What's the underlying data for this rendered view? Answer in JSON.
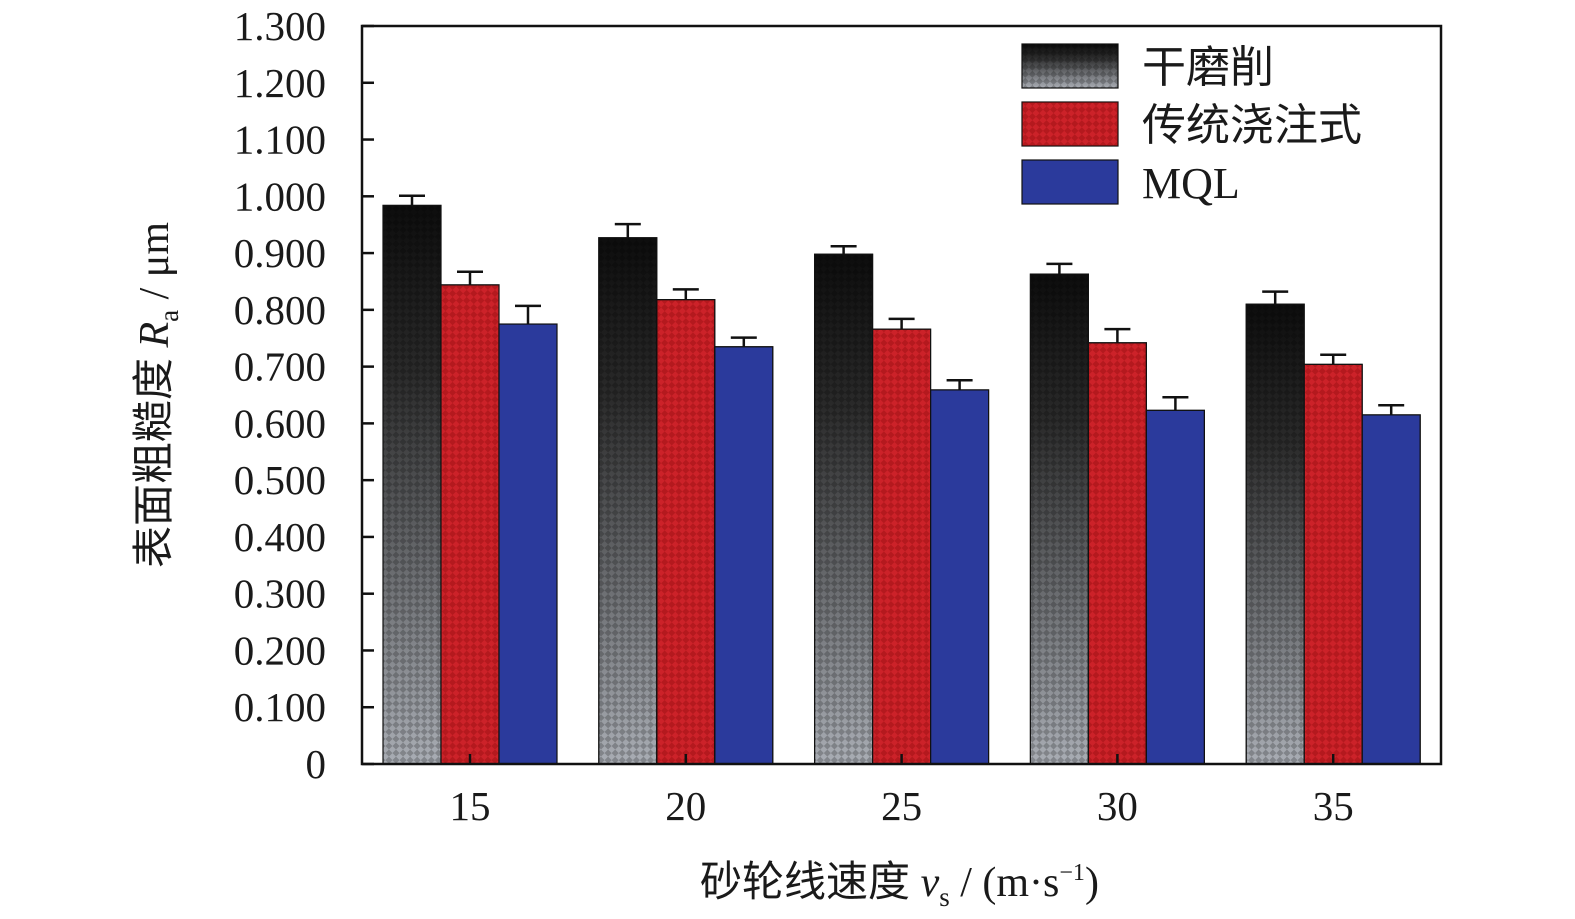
{
  "chart_data": {
    "type": "bar",
    "categories": [
      "15",
      "20",
      "25",
      "30",
      "35"
    ],
    "series": [
      {
        "name": "干磨削",
        "values": [
          0.984,
          0.927,
          0.898,
          0.863,
          0.81
        ],
        "errors": [
          0.017,
          0.024,
          0.014,
          0.018,
          0.022
        ],
        "color": "#1c1c1c"
      },
      {
        "name": "传统浇注式",
        "values": [
          0.844,
          0.818,
          0.766,
          0.742,
          0.704
        ],
        "errors": [
          0.023,
          0.018,
          0.018,
          0.024,
          0.017
        ],
        "color": "#cc2229"
      },
      {
        "name": "MQL",
        "values": [
          0.775,
          0.735,
          0.659,
          0.623,
          0.615
        ],
        "errors": [
          0.032,
          0.016,
          0.017,
          0.023,
          0.017
        ],
        "color": "#2b3a9c"
      }
    ],
    "ylim": [
      0,
      1.3
    ],
    "yticks": [
      "0",
      "0.100",
      "0.200",
      "0.300",
      "0.400",
      "0.500",
      "0.600",
      "0.700",
      "0.800",
      "0.900",
      "1.000",
      "1.100",
      "1.200",
      "1.300"
    ],
    "ylabel": {
      "main": "表面粗糙度 ",
      "symbol": "R",
      "sub": "a",
      "unit": " / μm"
    },
    "xlabel": {
      "main": "砂轮线速度 ",
      "symbol": "v",
      "sub": "s",
      "unit_open": " / (m·s",
      "sup": "−1",
      "unit_close": ")"
    },
    "legend_position": "top-right",
    "grid": false
  }
}
